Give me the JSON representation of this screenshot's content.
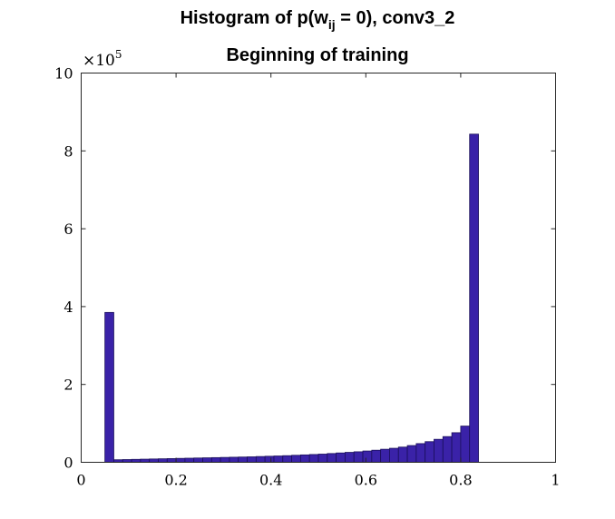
{
  "chart_data": {
    "type": "bar",
    "title_line1_prefix": "Histogram of p(w",
    "title_line1_subscript": "ij",
    "title_line1_suffix": " = 0), conv3_2",
    "title_line2": "Beginning of training",
    "xlabel": "",
    "ylabel": "",
    "xlim": [
      0,
      1
    ],
    "ylim": [
      0,
      1000000
    ],
    "xticks": [
      "0",
      "0.2",
      "0.4",
      "0.6",
      "0.8",
      "1"
    ],
    "yticks": [
      "0",
      "2",
      "4",
      "6",
      "8",
      "10"
    ],
    "y_exponent_base": "×10",
    "y_exponent_power": "5",
    "grid": false,
    "bar_color": "#3a22a8",
    "bar_edge_color": "#1a0f5a",
    "bin_edges_start": 0.05,
    "bin_width": 0.01875,
    "values": [
      385000,
      6500,
      7000,
      7500,
      8000,
      8500,
      9000,
      9500,
      10000,
      10500,
      11000,
      11500,
      12000,
      12500,
      13000,
      13500,
      14000,
      14800,
      15500,
      16200,
      17000,
      18000,
      19000,
      20000,
      21000,
      22500,
      24000,
      25500,
      27000,
      29000,
      31000,
      33500,
      36000,
      39000,
      43000,
      48000,
      53000,
      59000,
      66000,
      76000,
      93000,
      843000
    ]
  }
}
